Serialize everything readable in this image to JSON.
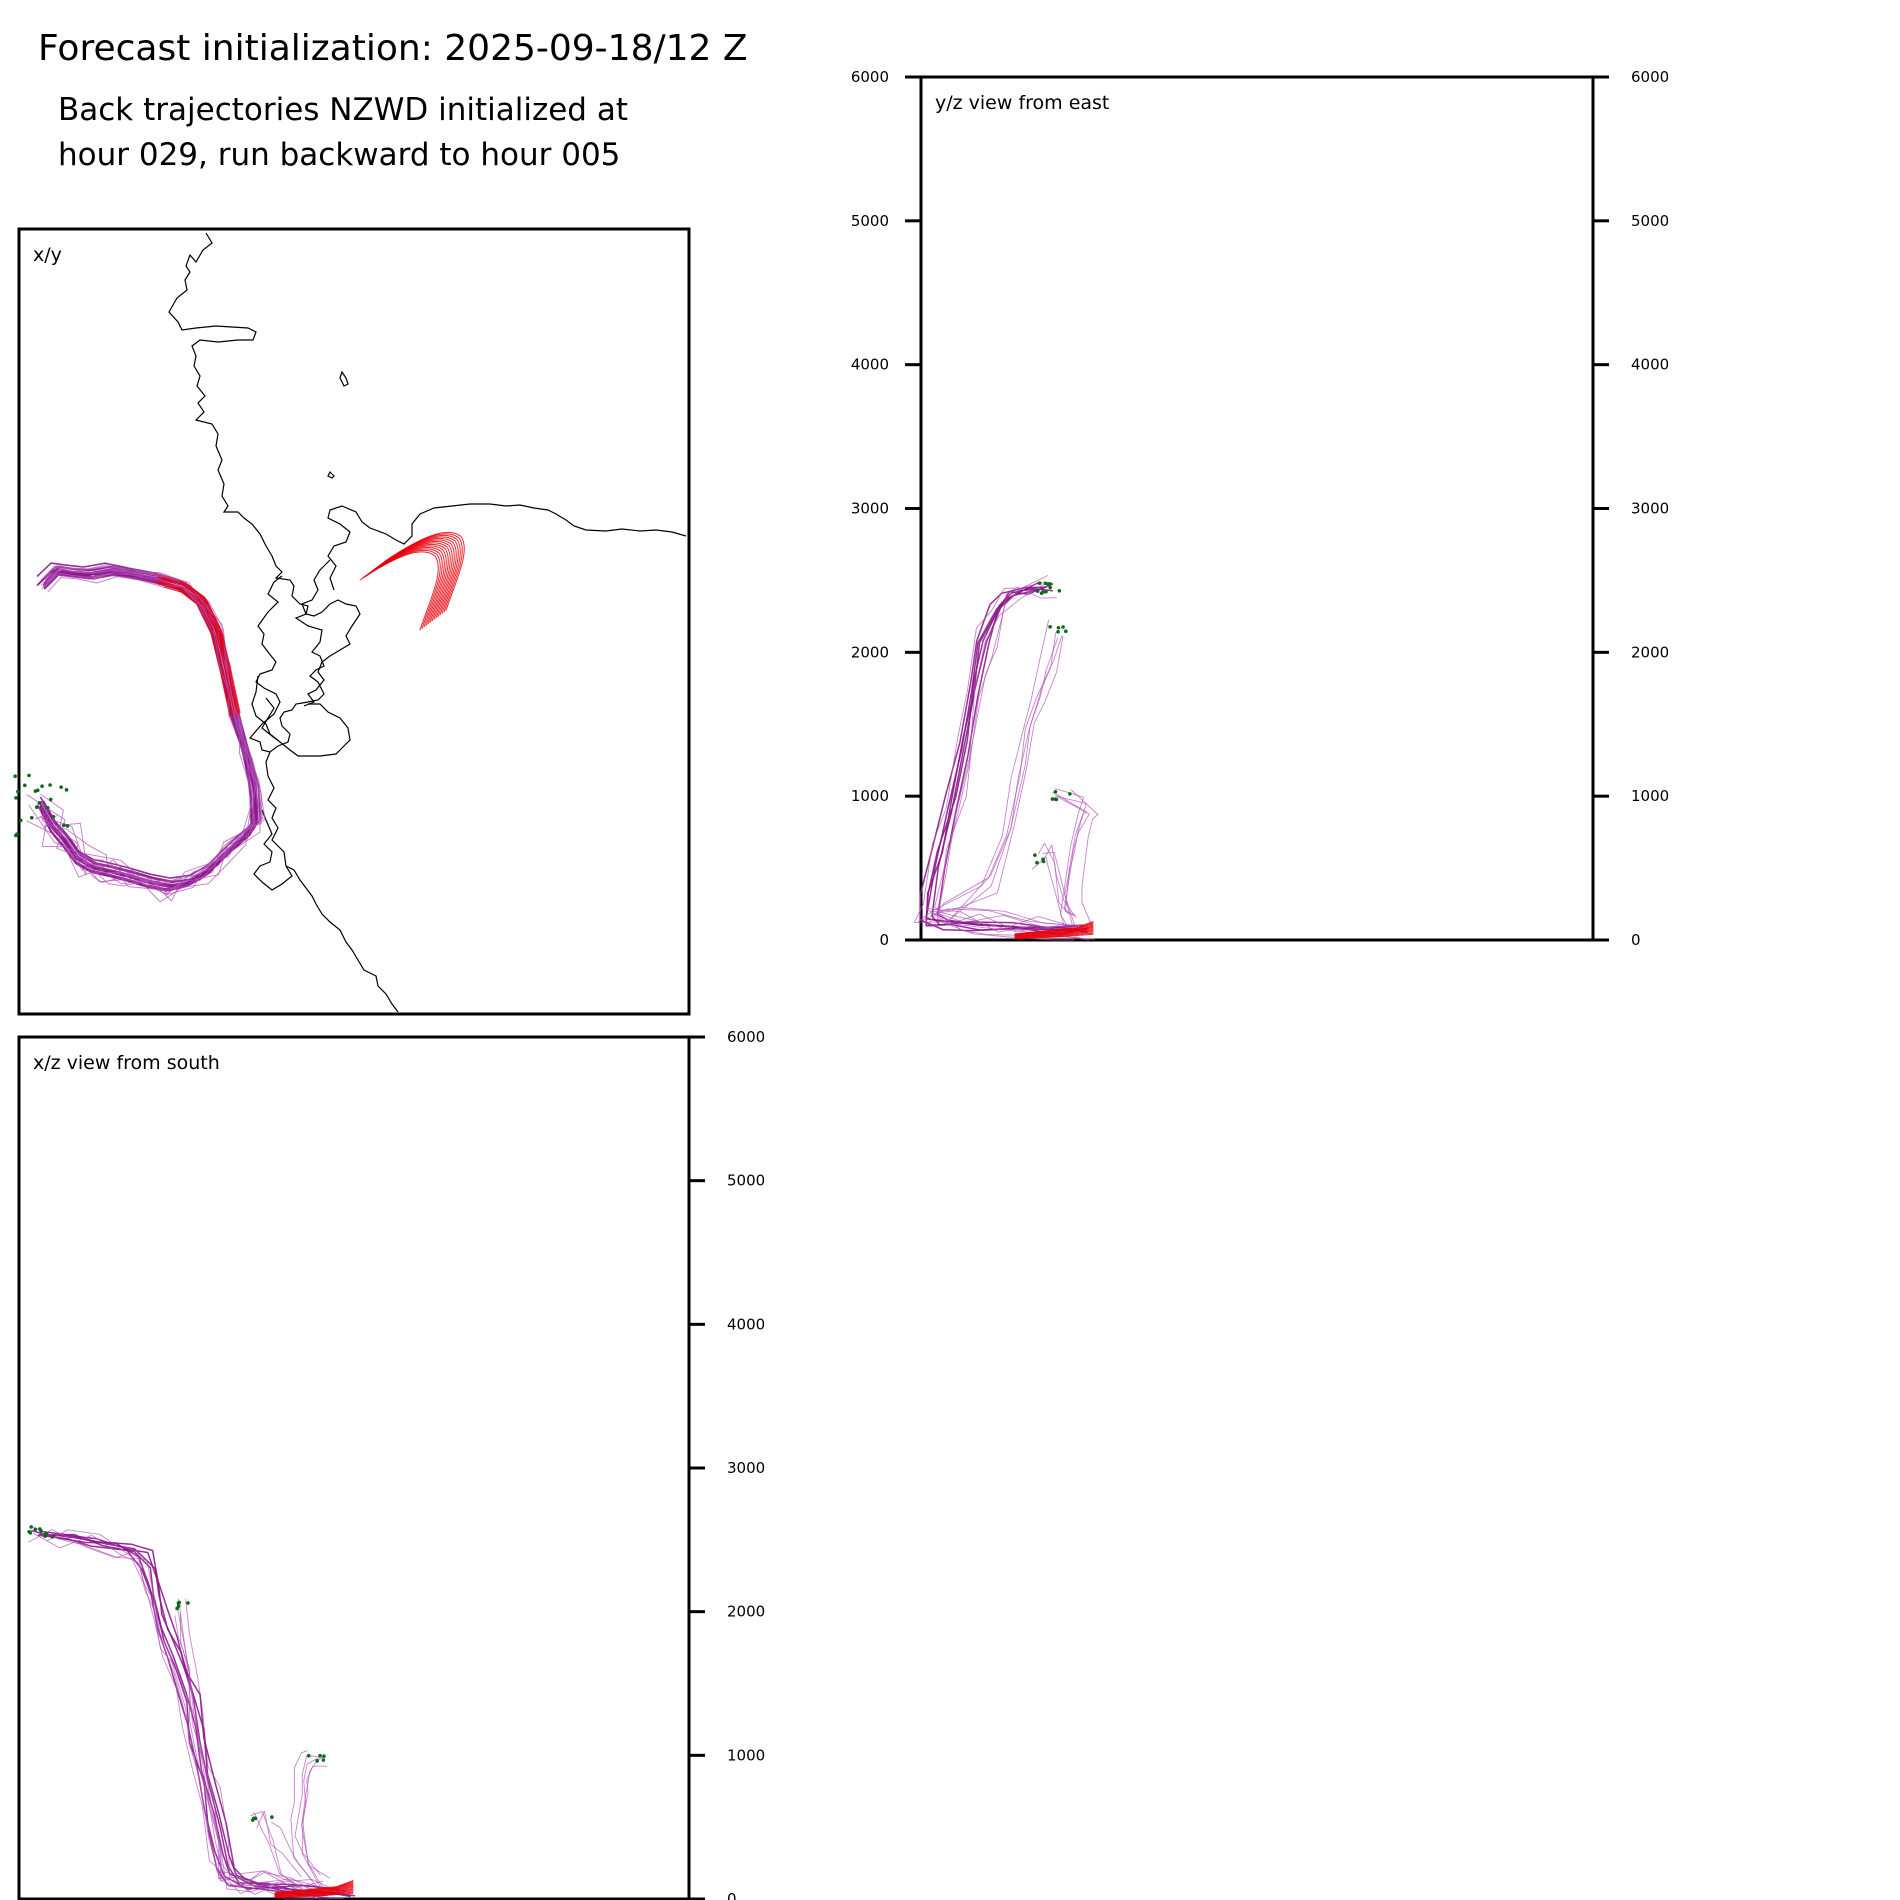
{
  "title": "Forecast initialization: 2025-09-18/12 Z",
  "subtitle_lines": [
    "Back trajectories NZWD initialized at",
    "hour 029, run backward to hour 005"
  ],
  "colors": {
    "start_segment": "#e8000b",
    "main_path": "#8b1a8b",
    "spread_path": "#b050b8",
    "endpoint": "#0b6b1a",
    "coastline": "#000000"
  },
  "chart_data": [
    {
      "type": "line",
      "panel": "x/y",
      "label": "x/y",
      "grid": false,
      "series": [
        {
          "role": "main",
          "values": [
            [
              4,
              52
            ],
            [
              18,
              38
            ],
            [
              34,
              41
            ],
            [
              53,
              42
            ],
            [
              75,
              38
            ],
            [
              98,
              43
            ],
            [
              125,
              48
            ],
            [
              150,
              55
            ],
            [
              170,
              70
            ],
            [
              185,
              100
            ],
            [
              195,
              140
            ],
            [
              205,
              185
            ],
            [
              216,
              225
            ],
            [
              224,
              262
            ],
            [
              226,
              295
            ],
            [
              219,
              307
            ],
            [
              197,
              326
            ],
            [
              174,
              347
            ],
            [
              156,
              357
            ],
            [
              136,
              360
            ],
            [
              115,
              356
            ],
            [
              94,
              350
            ],
            [
              74,
              345
            ],
            [
              55,
              341
            ],
            [
              40,
              332
            ],
            [
              27,
              314
            ],
            [
              14,
              300
            ],
            [
              0,
              278
            ]
          ]
        },
        {
          "role": "main",
          "values": [
            [
              6,
              56
            ],
            [
              20,
              42
            ],
            [
              38,
              44
            ],
            [
              57,
              46
            ],
            [
              78,
              42
            ],
            [
              100,
              46
            ],
            [
              127,
              51
            ],
            [
              151,
              58
            ],
            [
              172,
              74
            ],
            [
              187,
              104
            ],
            [
              196,
              144
            ],
            [
              206,
              189
            ],
            [
              215,
              228
            ],
            [
              221,
              265
            ],
            [
              222,
              298
            ],
            [
              214,
              310
            ],
            [
              192,
              331
            ],
            [
              170,
              351
            ],
            [
              152,
              360
            ],
            [
              133,
              364
            ],
            [
              112,
              360
            ],
            [
              92,
              354
            ],
            [
              72,
              349
            ],
            [
              54,
              345
            ],
            [
              38,
              336
            ],
            [
              24,
              318
            ],
            [
              12,
              304
            ],
            [
              2,
              284
            ]
          ]
        },
        {
          "role": "main",
          "values": [
            [
              2,
              48
            ],
            [
              16,
              35
            ],
            [
              31,
              37
            ],
            [
              50,
              39
            ],
            [
              72,
              35
            ],
            [
              96,
              40
            ],
            [
              123,
              45
            ],
            [
              148,
              52
            ],
            [
              168,
              67
            ],
            [
              183,
              97
            ],
            [
              193,
              137
            ],
            [
              203,
              182
            ],
            [
              217,
              222
            ],
            [
              227,
              258
            ],
            [
              229,
              292
            ],
            [
              222,
              303
            ],
            [
              200,
              322
            ],
            [
              178,
              343
            ],
            [
              160,
              353
            ],
            [
              139,
              356
            ],
            [
              118,
              352
            ],
            [
              97,
              346
            ],
            [
              77,
              341
            ],
            [
              58,
              337
            ],
            [
              42,
              328
            ],
            [
              29,
              310
            ],
            [
              16,
              296
            ],
            [
              3,
              274
            ]
          ]
        }
      ],
      "note_endpoints_count": 40
    },
    {
      "type": "line",
      "panel": "y/z",
      "label": "y/z view from east",
      "ylim": [
        0,
        6000
      ],
      "yticks": [
        0,
        1000,
        2000,
        3000,
        4000,
        5000,
        6000
      ],
      "grid": false,
      "series": [
        {
          "role": "main",
          "values": [
            [
              1085,
              60
            ],
            [
              1060,
              70
            ],
            [
              1020,
              80
            ],
            [
              980,
              90
            ],
            [
              950,
              100
            ],
            [
              925,
              120
            ],
            [
              930,
              300
            ],
            [
              940,
              600
            ],
            [
              955,
              1000
            ],
            [
              965,
              1400
            ],
            [
              975,
              1800
            ],
            [
              985,
              2100
            ],
            [
              1000,
              2350
            ],
            [
              1010,
              2400
            ],
            [
              1030,
              2430
            ],
            [
              1050,
              2450
            ]
          ]
        },
        {
          "role": "main",
          "values": [
            [
              1080,
              80
            ],
            [
              1050,
              90
            ],
            [
              1010,
              100
            ],
            [
              970,
              110
            ],
            [
              940,
              120
            ],
            [
              930,
              180
            ],
            [
              938,
              500
            ],
            [
              950,
              900
            ],
            [
              962,
              1300
            ],
            [
              972,
              1700
            ],
            [
              982,
              2050
            ],
            [
              996,
              2300
            ],
            [
              1012,
              2410
            ],
            [
              1040,
              2460
            ]
          ]
        },
        {
          "role": "spread",
          "values": [
            [
              1075,
              90
            ],
            [
              1040,
              110
            ],
            [
              1000,
              130
            ],
            [
              960,
              150
            ],
            [
              930,
              170
            ],
            [
              945,
              200
            ],
            [
              990,
              400
            ],
            [
              1010,
              800
            ],
            [
              1020,
              1200
            ],
            [
              1030,
              1500
            ],
            [
              1040,
              1700
            ],
            [
              1050,
              1900
            ],
            [
              1060,
              2170
            ]
          ]
        },
        {
          "role": "spread",
          "values": [
            [
              1080,
              100
            ],
            [
              1070,
              250
            ],
            [
              1075,
              450
            ],
            [
              1080,
              650
            ],
            [
              1085,
              800
            ],
            [
              1090,
              950
            ],
            [
              1060,
              1000
            ]
          ]
        },
        {
          "role": "spread",
          "values": [
            [
              1070,
              120
            ],
            [
              1060,
              300
            ],
            [
              1055,
              500
            ],
            [
              1050,
              600
            ],
            [
              1040,
              560
            ]
          ]
        }
      ]
    },
    {
      "type": "line",
      "panel": "x/z",
      "label": "x/z view from south",
      "ylim": [
        0,
        6000
      ],
      "yticks": [
        0,
        1000,
        2000,
        3000,
        4000,
        5000,
        6000
      ],
      "grid": false,
      "series": [
        {
          "role": "main",
          "values": [
            [
              345,
              40
            ],
            [
              320,
              50
            ],
            [
              290,
              60
            ],
            [
              260,
              80
            ],
            [
              235,
              120
            ],
            [
              222,
              200
            ],
            [
              215,
              500
            ],
            [
              205,
              800
            ],
            [
              196,
              1100
            ],
            [
              188,
              1400
            ],
            [
              178,
              1600
            ],
            [
              168,
              1800
            ],
            [
              158,
              2000
            ],
            [
              150,
              2200
            ],
            [
              140,
              2400
            ],
            [
              120,
              2450
            ],
            [
              90,
              2500
            ],
            [
              60,
              2540
            ],
            [
              35,
              2560
            ]
          ]
        },
        {
          "role": "main",
          "values": [
            [
              340,
              60
            ],
            [
              310,
              70
            ],
            [
              280,
              80
            ],
            [
              250,
              100
            ],
            [
              228,
              150
            ],
            [
              220,
              300
            ],
            [
              212,
              600
            ],
            [
              202,
              900
            ],
            [
              194,
              1200
            ],
            [
              184,
              1450
            ],
            [
              172,
              1700
            ],
            [
              162,
              1900
            ],
            [
              154,
              2100
            ],
            [
              146,
              2300
            ],
            [
              130,
              2420
            ],
            [
              100,
              2480
            ],
            [
              70,
              2520
            ],
            [
              45,
              2540
            ]
          ]
        },
        {
          "role": "spread",
          "values": [
            [
              330,
              80
            ],
            [
              300,
              100
            ],
            [
              270,
              120
            ],
            [
              245,
              150
            ],
            [
              230,
              180
            ],
            [
              225,
              350
            ],
            [
              218,
              700
            ],
            [
              208,
              1000
            ],
            [
              200,
              1300
            ],
            [
              196,
              1600
            ],
            [
              190,
              1800
            ],
            [
              186,
              2050
            ]
          ]
        },
        {
          "role": "spread",
          "values": [
            [
              320,
              100
            ],
            [
              300,
              300
            ],
            [
              295,
              500
            ],
            [
              298,
              700
            ],
            [
              300,
              850
            ],
            [
              305,
              950
            ],
            [
              315,
              1000
            ]
          ]
        },
        {
          "role": "spread",
          "values": [
            [
              310,
              120
            ],
            [
              290,
              250
            ],
            [
              280,
              400
            ],
            [
              270,
              550
            ],
            [
              262,
              570
            ]
          ]
        }
      ]
    }
  ]
}
